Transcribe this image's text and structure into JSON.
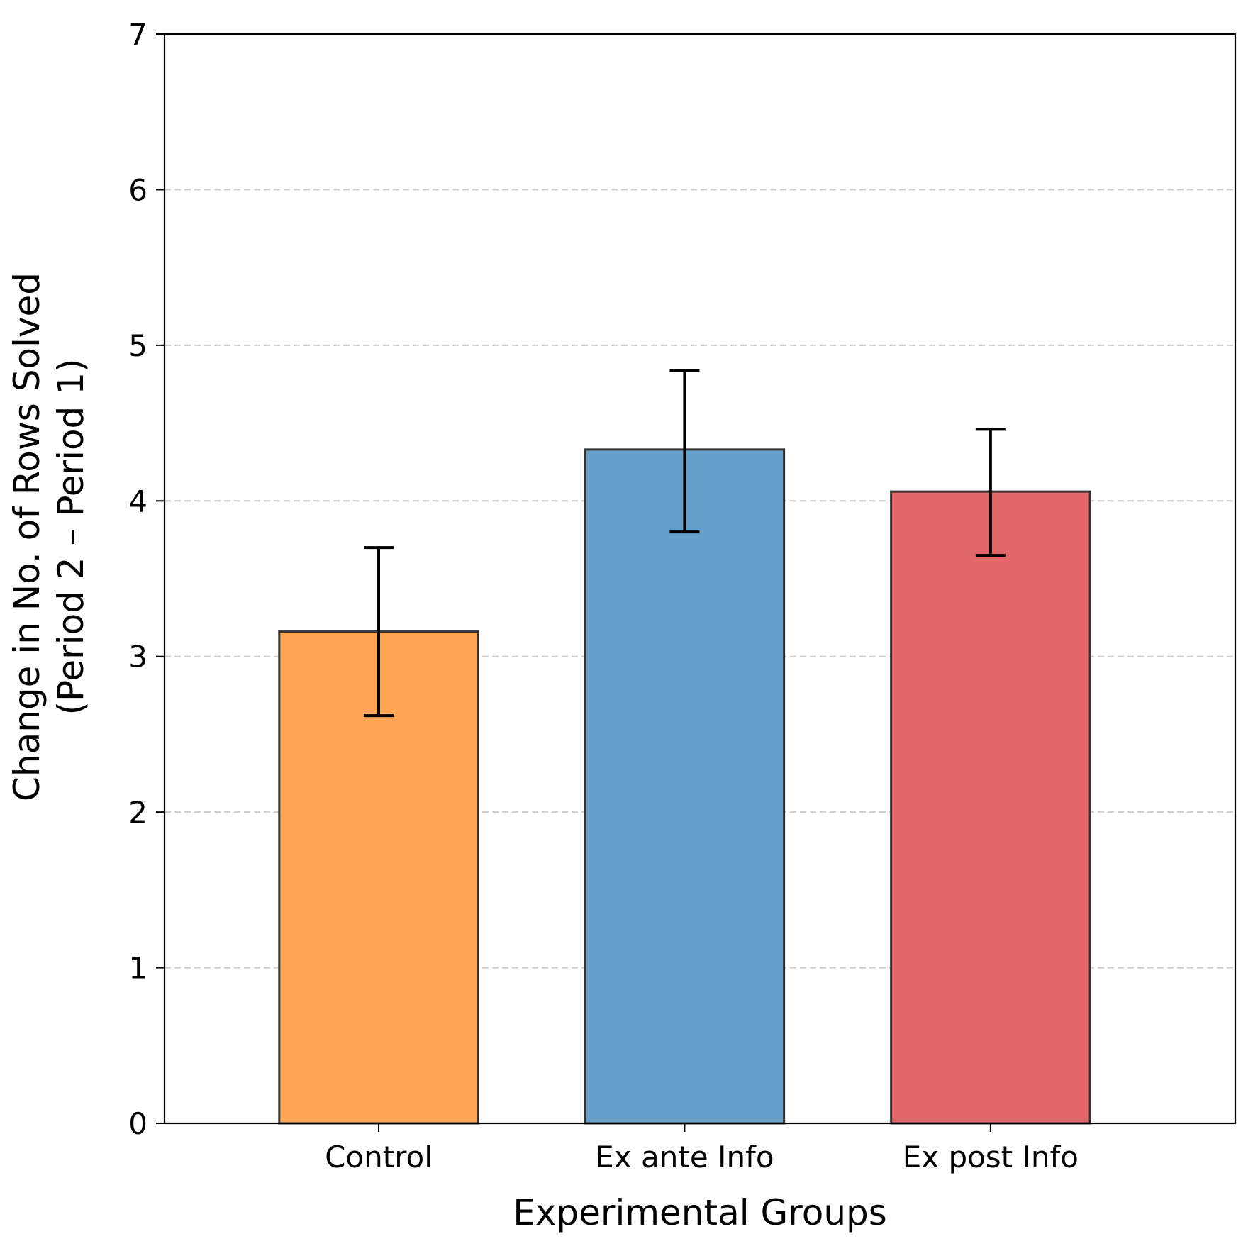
{
  "chart_data": {
    "type": "bar",
    "title": "",
    "xlabel": "Experimental Groups",
    "ylabel_lines": [
      "Change in No. of Rows Solved",
      "(Period 2 – Period 1)"
    ],
    "categories": [
      "Control",
      "Ex ante Info",
      "Ex post Info"
    ],
    "values": [
      3.16,
      4.33,
      4.06
    ],
    "error_low": [
      2.62,
      3.8,
      3.65
    ],
    "error_high": [
      3.7,
      4.84,
      4.46
    ],
    "colors": [
      "#fea656",
      "#65a0cb",
      "#e2686b"
    ],
    "ylim": [
      0,
      7
    ],
    "yticks": [
      "0",
      "1",
      "2",
      "3",
      "4",
      "5",
      "6",
      "7"
    ],
    "grid": true,
    "legend": "none"
  }
}
